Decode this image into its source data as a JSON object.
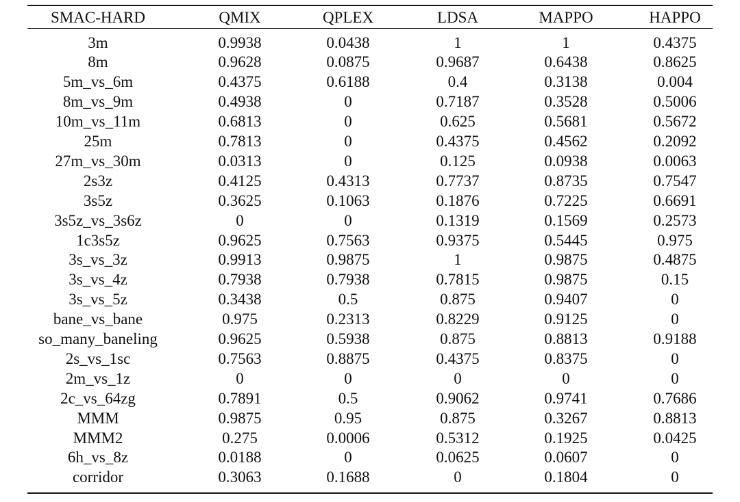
{
  "table": {
    "header": [
      "SMAC-HARD",
      "QMIX",
      "QPLEX",
      "LDSA",
      "MAPPO",
      "HAPPO"
    ],
    "rows": [
      [
        "3m",
        "0.9938",
        "0.0438",
        "1",
        "1",
        "0.4375"
      ],
      [
        "8m",
        "0.9628",
        "0.0875",
        "0.9687",
        "0.6438",
        "0.8625"
      ],
      [
        "5m_vs_6m",
        "0.4375",
        "0.6188",
        "0.4",
        "0.3138",
        "0.004"
      ],
      [
        "8m_vs_9m",
        "0.4938",
        "0",
        "0.7187",
        "0.3528",
        "0.5006"
      ],
      [
        "10m_vs_11m",
        "0.6813",
        "0",
        "0.625",
        "0.5681",
        "0.5672"
      ],
      [
        "25m",
        "0.7813",
        "0",
        "0.4375",
        "0.4562",
        "0.2092"
      ],
      [
        "27m_vs_30m",
        "0.0313",
        "0",
        "0.125",
        "0.0938",
        "0.0063"
      ],
      [
        "2s3z",
        "0.4125",
        "0.4313",
        "0.7737",
        "0.8735",
        "0.7547"
      ],
      [
        "3s5z",
        "0.3625",
        "0.1063",
        "0.1876",
        "0.7225",
        "0.6691"
      ],
      [
        "3s5z_vs_3s6z",
        "0",
        "0",
        "0.1319",
        "0.1569",
        "0.2573"
      ],
      [
        "1c3s5z",
        "0.9625",
        "0.7563",
        "0.9375",
        "0.5445",
        "0.975"
      ],
      [
        "3s_vs_3z",
        "0.9913",
        "0.9875",
        "1",
        "0.9875",
        "0.4875"
      ],
      [
        "3s_vs_4z",
        "0.7938",
        "0.7938",
        "0.7815",
        "0.9875",
        "0.15"
      ],
      [
        "3s_vs_5z",
        "0.3438",
        "0.5",
        "0.875",
        "0.9407",
        "0"
      ],
      [
        "bane_vs_bane",
        "0.975",
        "0.2313",
        "0.8229",
        "0.9125",
        "0"
      ],
      [
        "so_many_baneling",
        "0.9625",
        "0.5938",
        "0.875",
        "0.8813",
        "0.9188"
      ],
      [
        "2s_vs_1sc",
        "0.7563",
        "0.8875",
        "0.4375",
        "0.8375",
        "0"
      ],
      [
        "2m_vs_1z",
        "0",
        "0",
        "0",
        "0",
        "0"
      ],
      [
        "2c_vs_64zg",
        "0.7891",
        "0.5",
        "0.9062",
        "0.9741",
        "0.7686"
      ],
      [
        "MMM",
        "0.9875",
        "0.95",
        "0.875",
        "0.3267",
        "0.8813"
      ],
      [
        "MMM2",
        "0.275",
        "0.0006",
        "0.5312",
        "0.1925",
        "0.0425"
      ],
      [
        "6h_vs_8z",
        "0.0188",
        "0",
        "0.0625",
        "0.0607",
        "0"
      ],
      [
        "corridor",
        "0.3063",
        "0.1688",
        "0",
        "0.1804",
        "0"
      ]
    ]
  }
}
